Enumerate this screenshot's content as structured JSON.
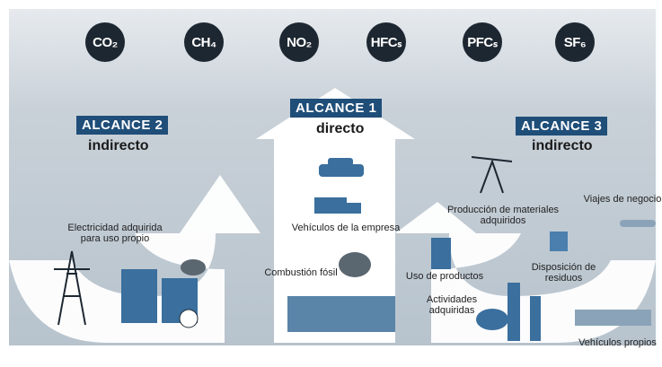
{
  "gases": [
    "CO₂",
    "CH₄",
    "NO₂",
    "HFCₛ",
    "PFCₛ",
    "SF₆"
  ],
  "scopes": [
    {
      "badge": "ALCANCE 2",
      "label": "indirecto",
      "items": [
        "Electricidad adquirida para uso propio"
      ]
    },
    {
      "badge": "ALCANCE 1",
      "label": "directo",
      "items": [
        "Vehículos de la empresa",
        "Combustión fósil"
      ]
    },
    {
      "badge": "ALCANCE 3",
      "label": "indirecto",
      "items": [
        "Producción de materiales adquiridos",
        "Viajes de negocio",
        "Uso de productos",
        "Disposición de residuos",
        "Actividades adquiridas",
        "Vehículos propios"
      ]
    }
  ]
}
